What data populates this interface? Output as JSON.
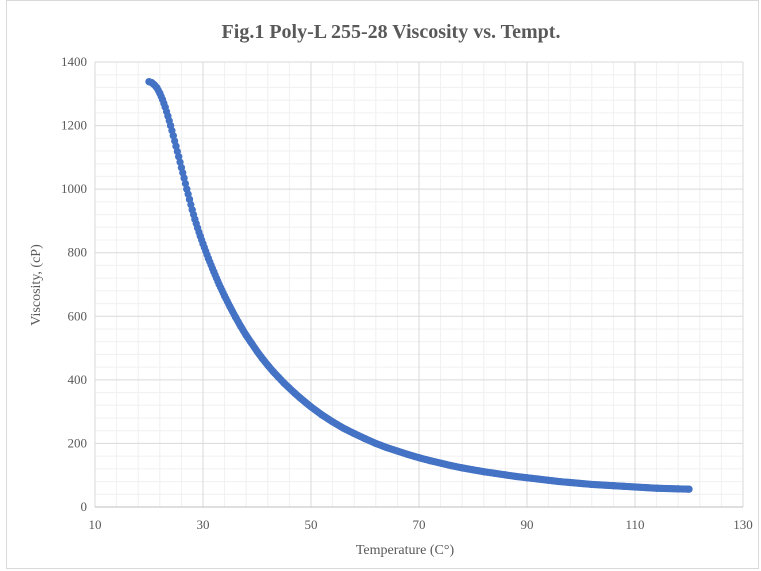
{
  "chart_data": {
    "type": "scatter",
    "title": "Fig.1 Poly-L 255-28  Viscosity vs. Tempt.",
    "xlabel": "Temperature (C°)",
    "ylabel": "Viscosity, (cP)",
    "xlim": [
      10,
      130
    ],
    "ylim": [
      0,
      1400
    ],
    "xticks": [
      "10",
      "30",
      "50",
      "70",
      "90",
      "110",
      "130"
    ],
    "yticks": [
      "0",
      "200",
      "400",
      "600",
      "800",
      "1000",
      "1200",
      "1400"
    ],
    "grid": true,
    "marker_color": "#4472c4",
    "series": [
      {
        "x": [
          20,
          20.5,
          21,
          21.5,
          22,
          22.5,
          23,
          23.5,
          24,
          24.5,
          25,
          25.5,
          26,
          26.5,
          27,
          27.5,
          28,
          28.5,
          29,
          29.5,
          30,
          31,
          32,
          33,
          34,
          35,
          36,
          37,
          38,
          39,
          40,
          41,
          42,
          43,
          44,
          45,
          46,
          47,
          48,
          49,
          50,
          52,
          54,
          56,
          58,
          60,
          62,
          64,
          66,
          68,
          70,
          72,
          74,
          76,
          78,
          80,
          82,
          84,
          86,
          88,
          90,
          92,
          94,
          96,
          98,
          100,
          102,
          104,
          106,
          108,
          110,
          112,
          114,
          116,
          118,
          120
        ],
        "y": [
          1338,
          1335,
          1328,
          1318,
          1302,
          1282,
          1258,
          1230,
          1200,
          1168,
          1135,
          1102,
          1068,
          1035,
          1000,
          968,
          935,
          905,
          878,
          852,
          828,
          782,
          740,
          700,
          664,
          630,
          598,
          568,
          540,
          515,
          490,
          467,
          446,
          426,
          408,
          390,
          374,
          358,
          343,
          329,
          315,
          290,
          268,
          248,
          231,
          215,
          200,
          187,
          176,
          165,
          155,
          146,
          138,
          130,
          123,
          117,
          111,
          106,
          101,
          96,
          92,
          88,
          84,
          80,
          77,
          74,
          71,
          69,
          67,
          65,
          63,
          61,
          59,
          58,
          57,
          56
        ]
      }
    ]
  }
}
